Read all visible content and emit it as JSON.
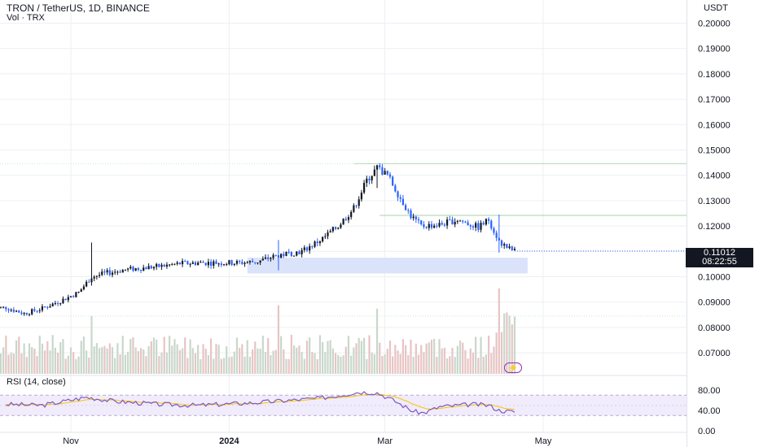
{
  "header": {
    "symbol_line": "TRON / TetherUS, 1D, BINANCE",
    "volume_line": "Vol · TRX"
  },
  "price_axis": {
    "currency": "USDT",
    "last_price": "0.11012",
    "countdown": "08:22:55"
  },
  "rsi": {
    "label": "RSI (14, close)",
    "ticks": [
      "80.00",
      "40.00",
      "0.00"
    ]
  },
  "colors": {
    "up": "#131722",
    "down": "#2962ff",
    "rsi_line": "#7e57c2",
    "rsi_ma": "#f7c500",
    "zone_fill": "#dbe3fb",
    "volume": "#c9d7cb",
    "volume_down": "#e8c4c4",
    "grid": "#eceff3",
    "last_price_bg": "#131722"
  },
  "icons": {
    "alert": "lightning-icon"
  },
  "chart_data": {
    "type": "candlestick",
    "title": "TRON / TetherUS, 1D, BINANCE",
    "y_axis": {
      "ticks": [
        0.07,
        0.08,
        0.09,
        0.1,
        0.11,
        0.12,
        0.13,
        0.14,
        0.15,
        0.16,
        0.17,
        0.18,
        0.19,
        0.2
      ],
      "range": [
        0.063,
        0.204
      ]
    },
    "x_axis": {
      "ticks": [
        "Nov",
        "2024",
        "Mar",
        "May"
      ]
    },
    "price_path": [
      [
        "2023-10-07",
        0.0878
      ],
      [
        "2023-10-14",
        0.0855
      ],
      [
        "2023-10-21",
        0.0875
      ],
      [
        "2023-10-28",
        0.0905
      ],
      [
        "2023-11-04",
        0.0938
      ],
      [
        "2023-11-09",
        0.1
      ],
      [
        "2023-11-15",
        0.1015
      ],
      [
        "2023-11-22",
        0.1028
      ],
      [
        "2023-11-29",
        0.1035
      ],
      [
        "2023-12-06",
        0.1042
      ],
      [
        "2023-12-13",
        0.1052
      ],
      [
        "2023-12-20",
        0.1055
      ],
      [
        "2023-12-27",
        0.1055
      ],
      [
        "2024-01-05",
        0.1055
      ],
      [
        "2024-01-12",
        0.106
      ],
      [
        "2024-01-20",
        0.1085
      ],
      [
        "2024-01-29",
        0.11
      ],
      [
        "2024-02-06",
        0.115
      ],
      [
        "2024-02-12",
        0.12
      ],
      [
        "2024-02-18",
        0.127
      ],
      [
        "2024-02-23",
        0.138
      ],
      [
        "2024-02-27",
        0.143
      ],
      [
        "2024-03-02",
        0.14
      ],
      [
        "2024-03-07",
        0.131
      ],
      [
        "2024-03-11",
        0.124
      ],
      [
        "2024-03-15",
        0.12
      ],
      [
        "2024-03-22",
        0.1205
      ],
      [
        "2024-03-29",
        0.1225
      ],
      [
        "2024-04-06",
        0.1195
      ],
      [
        "2024-04-10",
        0.1225
      ],
      [
        "2024-04-14",
        0.114
      ],
      [
        "2024-04-17",
        0.1115
      ],
      [
        "2024-04-20",
        0.1101
      ]
    ],
    "notable_candles": [
      {
        "date": "2023-11-09",
        "high": 0.1135,
        "low": 0.0965
      },
      {
        "date": "2024-01-20",
        "high": 0.1145,
        "low": 0.1025
      },
      {
        "date": "2024-02-27",
        "high": 0.1435,
        "low": 0.135
      },
      {
        "date": "2024-04-14",
        "high": 0.1245,
        "low": 0.1095
      }
    ],
    "last_price": 0.11012,
    "horizontal_levels": [
      0.1446,
      0.1242
    ],
    "support_zone": [
      0.1013,
      0.1075
    ],
    "volume_series_name": "Vol · TRX",
    "rsi": {
      "name": "RSI (14, close)",
      "ticks": [
        0,
        40,
        80
      ],
      "band": [
        30,
        70
      ],
      "points": [
        [
          "2023-10-07",
          52
        ],
        [
          "2023-10-21",
          50
        ],
        [
          "2023-11-07",
          66
        ],
        [
          "2023-11-18",
          58
        ],
        [
          "2023-12-05",
          52
        ],
        [
          "2023-12-20",
          50
        ],
        [
          "2024-01-10",
          55
        ],
        [
          "2024-01-25",
          60
        ],
        [
          "2024-02-05",
          64
        ],
        [
          "2024-02-20",
          76
        ],
        [
          "2024-02-27",
          75
        ],
        [
          "2024-03-05",
          58
        ],
        [
          "2024-03-12",
          38
        ],
        [
          "2024-03-16",
          35
        ],
        [
          "2024-03-22",
          47
        ],
        [
          "2024-04-04",
          52
        ],
        [
          "2024-04-10",
          50
        ],
        [
          "2024-04-14",
          40
        ],
        [
          "2024-04-20",
          37
        ]
      ]
    }
  }
}
